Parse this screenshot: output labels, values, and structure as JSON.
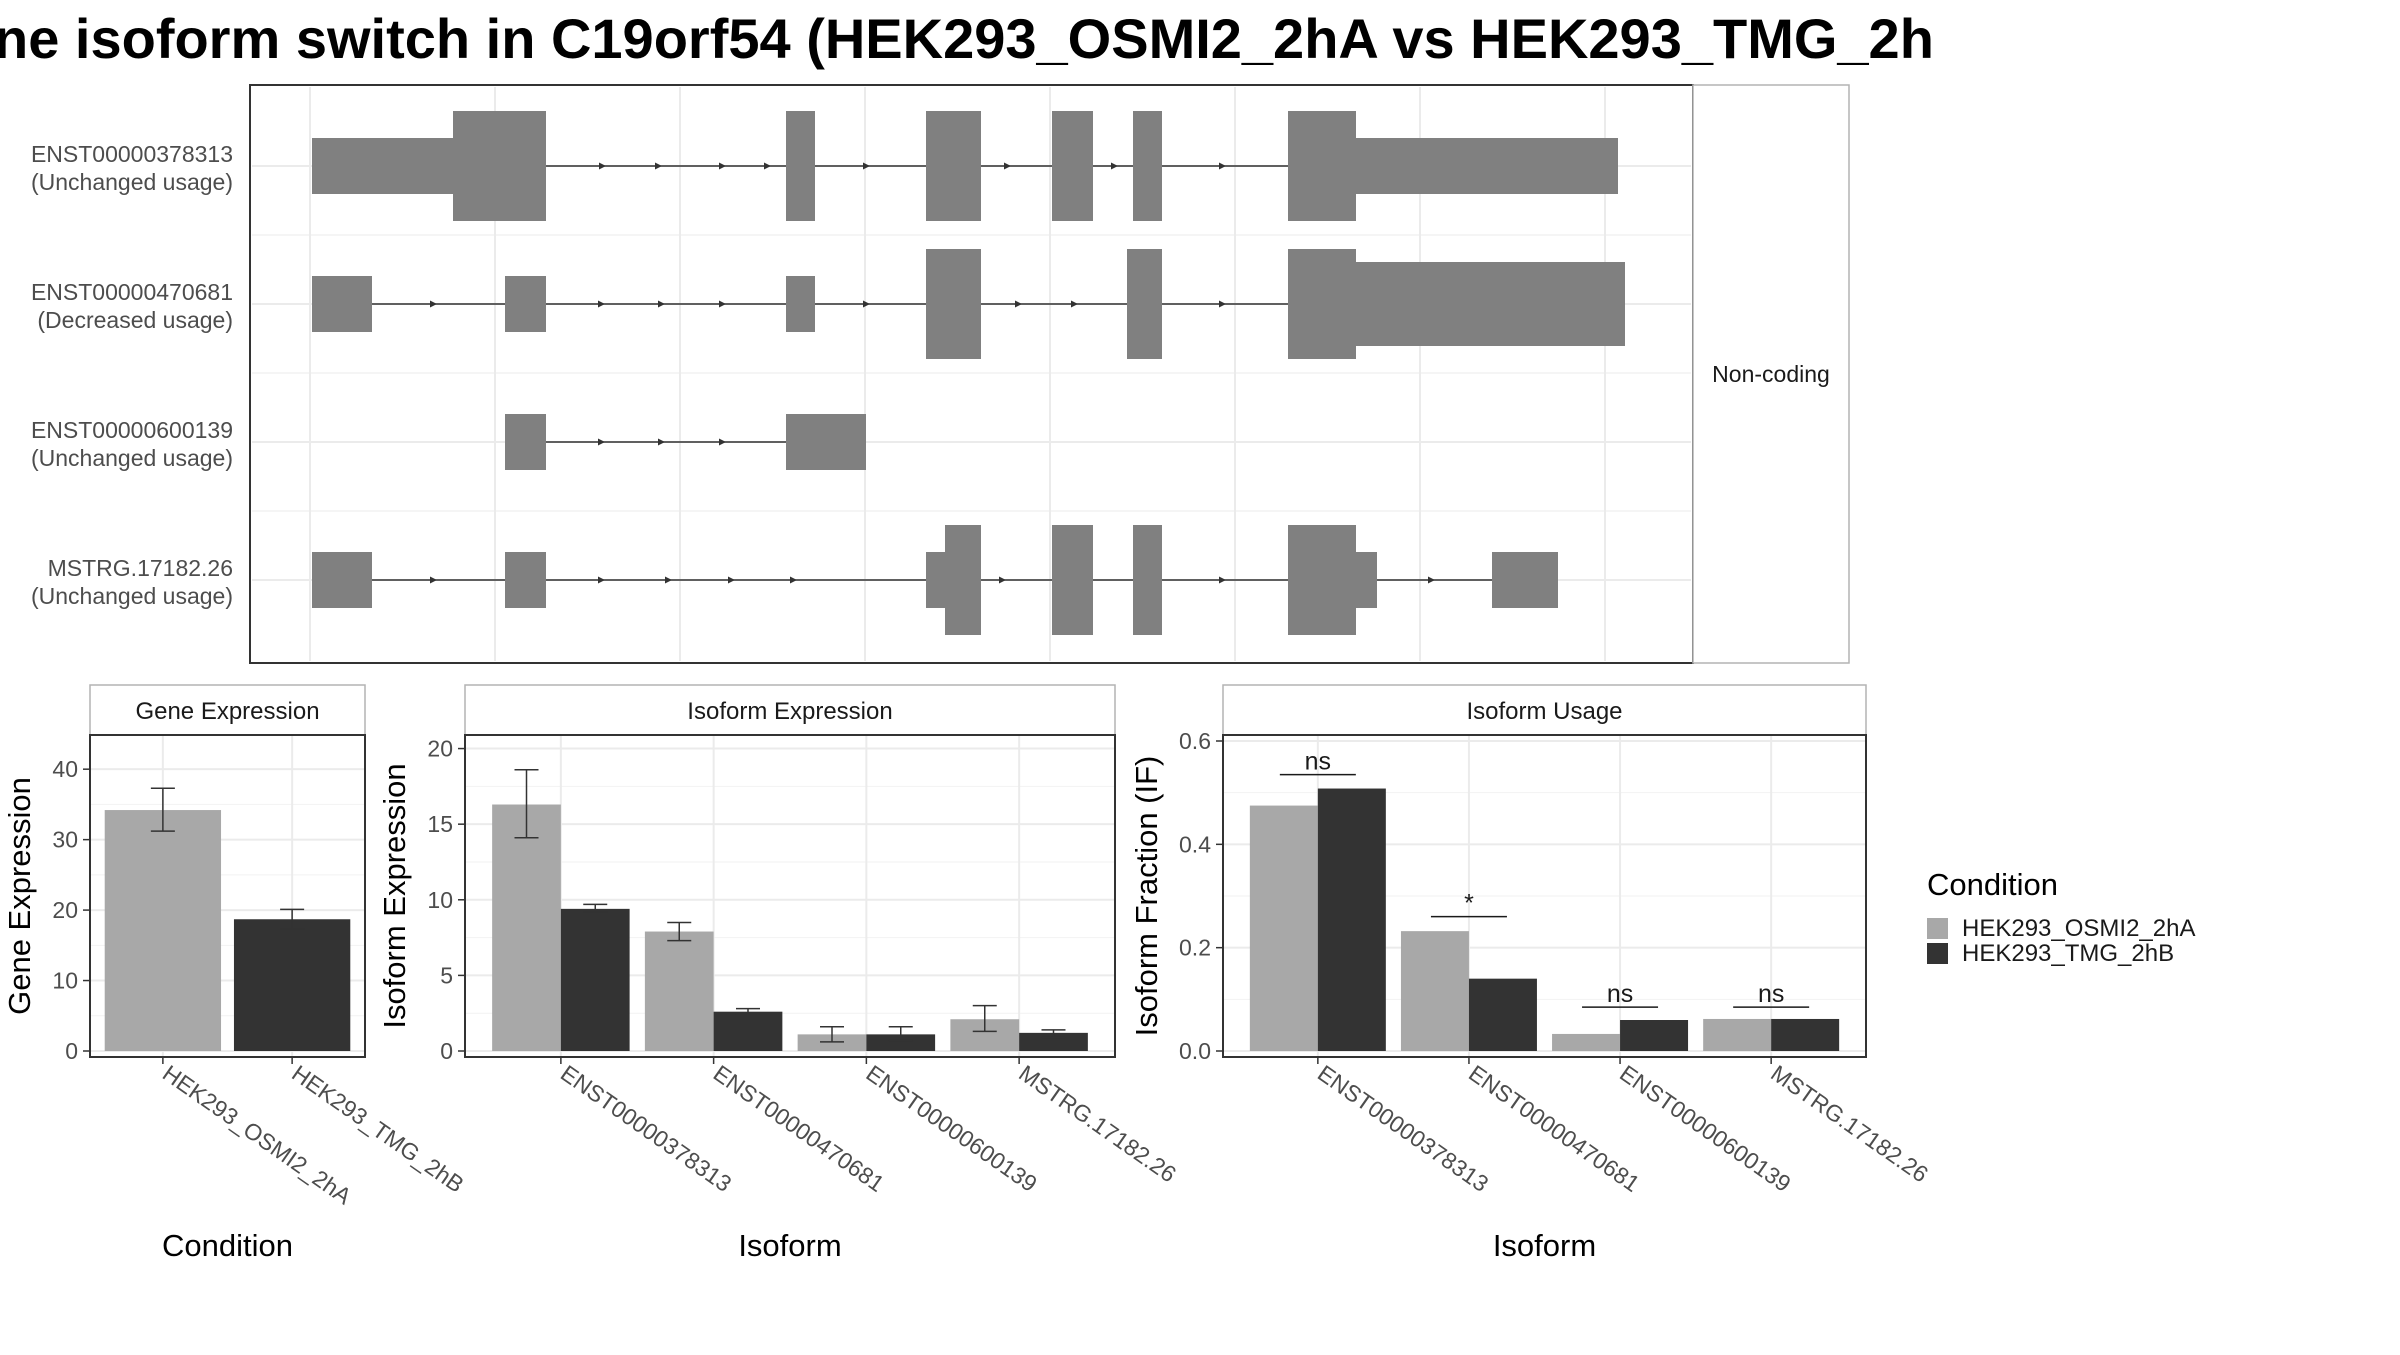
{
  "title": "ne isoform switch in C19orf54 (HEK293_OSMI2_2hA vs HEK293_TMG_2h",
  "colors": {
    "exon": "#808080",
    "condition_a": "#a8a8a8",
    "condition_b": "#333333",
    "grid": "#ebebeb",
    "panel_border": "#333333",
    "text": "#1a1a1a"
  },
  "structure": {
    "strip_label": "Non-coding",
    "transcripts": [
      {
        "id": "ENST00000378313",
        "status": "(Unchanged usage)"
      },
      {
        "id": "ENST00000470681",
        "status": "(Decreased usage)"
      },
      {
        "id": "ENST00000600139",
        "status": "(Unchanged usage)"
      },
      {
        "id": "MSTRG.17182.26",
        "status": "(Unchanged usage)"
      }
    ]
  },
  "legend": {
    "title": "Condition",
    "items": [
      {
        "label": "HEK293_OSMI2_2hA",
        "color": "#a8a8a8"
      },
      {
        "label": "HEK293_TMG_2hB",
        "color": "#333333"
      }
    ]
  },
  "chart_data": [
    {
      "type": "bar",
      "title": "Gene Expression",
      "xlabel": "Condition",
      "ylabel": "Gene Expression",
      "ylim": [
        0,
        44
      ],
      "yticks": [
        0,
        10,
        20,
        30,
        40
      ],
      "categories": [
        "HEK293_OSMI2_2hA",
        "HEK293_TMG_2hB"
      ],
      "values": [
        34.2,
        18.7
      ],
      "errors": [
        [
          31.2,
          37.3
        ],
        [
          17.3,
          20.1
        ]
      ],
      "colors": [
        "#a8a8a8",
        "#333333"
      ]
    },
    {
      "type": "bar",
      "title": "Isoform Expression",
      "xlabel": "Isoform",
      "ylabel": "Isoform Expression",
      "ylim": [
        0,
        20.5
      ],
      "yticks": [
        0,
        5,
        10,
        15,
        20
      ],
      "categories": [
        "ENST00000378313",
        "ENST00000470681",
        "ENST00000600139",
        "MSTRG.17182.26"
      ],
      "series": [
        {
          "name": "HEK293_OSMI2_2hA",
          "values": [
            16.3,
            7.9,
            1.1,
            2.1
          ],
          "errors": [
            [
              14.1,
              18.6
            ],
            [
              7.3,
              8.5
            ],
            [
              0.6,
              1.6
            ],
            [
              1.3,
              3.0
            ]
          ]
        },
        {
          "name": "HEK293_TMG_2hB",
          "values": [
            9.4,
            2.6,
            1.1,
            1.2
          ],
          "errors": [
            [
              9.2,
              9.7
            ],
            [
              2.4,
              2.8
            ],
            [
              0.7,
              1.6
            ],
            [
              0.9,
              1.4
            ]
          ]
        }
      ]
    },
    {
      "type": "bar",
      "title": "Isoform Usage",
      "xlabel": "Isoform",
      "ylabel": "Isoform Fraction (IF)",
      "ylim": [
        0,
        0.6
      ],
      "yticks": [
        0.0,
        0.2,
        0.4,
        0.6
      ],
      "ytick_labels": [
        "0.0",
        "0.2",
        "0.4",
        "0.6"
      ],
      "categories": [
        "ENST00000378313",
        "ENST00000470681",
        "ENST00000600139",
        "MSTRG.17182.26"
      ],
      "series": [
        {
          "name": "HEK293_OSMI2_2hA",
          "values": [
            0.475,
            0.232,
            0.033,
            0.062
          ]
        },
        {
          "name": "HEK293_TMG_2hB",
          "values": [
            0.508,
            0.14,
            0.06,
            0.062
          ]
        }
      ],
      "significance": [
        "ns",
        "*",
        "ns",
        "ns"
      ],
      "significance_levels": [
        0.535,
        0.26,
        0.085,
        0.085
      ]
    }
  ]
}
